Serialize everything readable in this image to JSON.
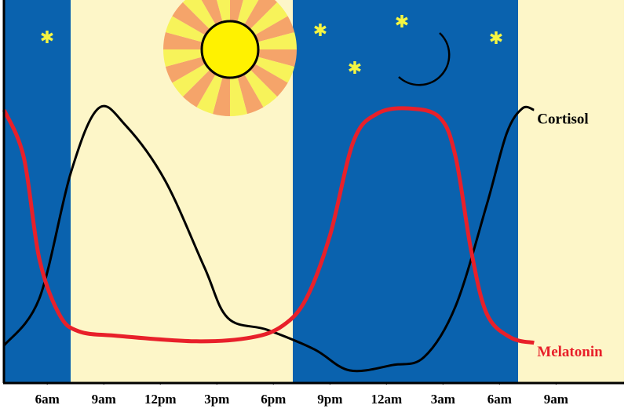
{
  "chart_data": {
    "type": "line",
    "xlim": [
      3.7,
      36.4
    ],
    "ylim": [
      0,
      100
    ],
    "xticks": [
      {
        "value": 6,
        "label": "6am"
      },
      {
        "value": 9,
        "label": "9am"
      },
      {
        "value": 12,
        "label": "12pm"
      },
      {
        "value": 15,
        "label": "3pm"
      },
      {
        "value": 18,
        "label": "6pm"
      },
      {
        "value": 21,
        "label": "9pm"
      },
      {
        "value": 24,
        "label": "12am"
      },
      {
        "value": 27,
        "label": "3am"
      },
      {
        "value": 30,
        "label": "6am"
      },
      {
        "value": 33,
        "label": "9am"
      }
    ],
    "series": [
      {
        "name": "Cortisol",
        "color": "#000000",
        "x": [
          3.71,
          5.58,
          7.25,
          8.71,
          10.17,
          12.25,
          14.33,
          15.58,
          17.67,
          20.17,
          22.04,
          24.33,
          26,
          27.67,
          29.33,
          30.38,
          31.21,
          31.83
        ],
        "values": [
          9.8,
          22.1,
          54.9,
          71.7,
          67.2,
          52.9,
          30.3,
          17,
          13.9,
          8.8,
          3.3,
          4.7,
          6.8,
          20.1,
          46.7,
          65.2,
          71.7,
          71.3
        ]
      },
      {
        "name": "Melatonin",
        "color": "#e8202a",
        "x": [
          3.71,
          4.75,
          5.58,
          6.63,
          7.67,
          9.75,
          13.92,
          16.83,
          18.5,
          19.75,
          21,
          22.25,
          23.5,
          25.17,
          26.83,
          27.67,
          28.5,
          29.33,
          30.58,
          31.83
        ],
        "values": [
          71.3,
          59,
          32.4,
          18,
          13.5,
          12.3,
          10.9,
          11.9,
          15,
          22.1,
          38.5,
          63.1,
          70.3,
          71.7,
          69.3,
          59,
          34.4,
          18,
          11.9,
          10.5
        ]
      }
    ]
  }
}
